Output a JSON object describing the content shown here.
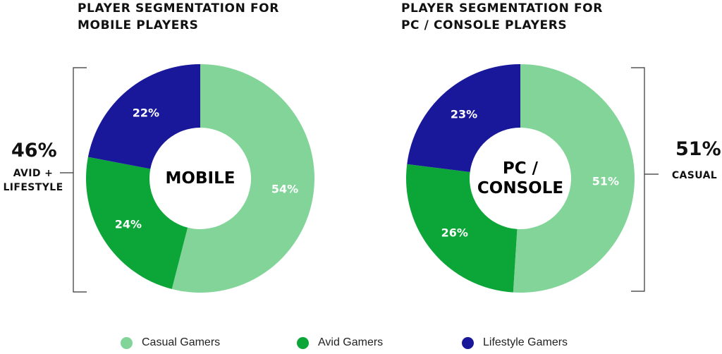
{
  "titles": {
    "left": [
      "PLAYER SEGMENTATION FOR",
      "MOBILE PLAYERS"
    ],
    "right": [
      "PLAYER SEGMENTATION FOR",
      "PC / CONSOLE PLAYERS"
    ]
  },
  "notes": {
    "left": {
      "value": "46%",
      "label": [
        "AVID +",
        "LIFESTYLE"
      ]
    },
    "right": {
      "value": "51%",
      "label": [
        "CASUAL"
      ]
    }
  },
  "legend": [
    {
      "label": "Casual Gamers",
      "color": "#83d499"
    },
    {
      "label": "Avid Gamers",
      "color": "#0ca638"
    },
    {
      "label": "Lifestyle Gamers",
      "color": "#19189a"
    }
  ],
  "chart_data": [
    {
      "type": "donut",
      "title": "PLAYER SEGMENTATION FOR MOBILE PLAYERS",
      "center_label": [
        "MOBILE"
      ],
      "slices": [
        {
          "name": "Casual Gamers",
          "value": 54,
          "label": "54%",
          "color": "#83d499"
        },
        {
          "name": "Avid Gamers",
          "value": 24,
          "label": "24%",
          "color": "#0ca638"
        },
        {
          "name": "Lifestyle Gamers",
          "value": 22,
          "label": "22%",
          "color": "#19189a"
        }
      ]
    },
    {
      "type": "donut",
      "title": "PLAYER SEGMENTATION FOR PC / CONSOLE PLAYERS",
      "center_label": [
        "PC /",
        "CONSOLE"
      ],
      "slices": [
        {
          "name": "Casual Gamers",
          "value": 51,
          "label": "51%",
          "color": "#83d499"
        },
        {
          "name": "Avid Gamers",
          "value": 26,
          "label": "26%",
          "color": "#0ca638"
        },
        {
          "name": "Lifestyle Gamers",
          "value": 23,
          "label": "23%",
          "color": "#19189a"
        }
      ]
    }
  ]
}
